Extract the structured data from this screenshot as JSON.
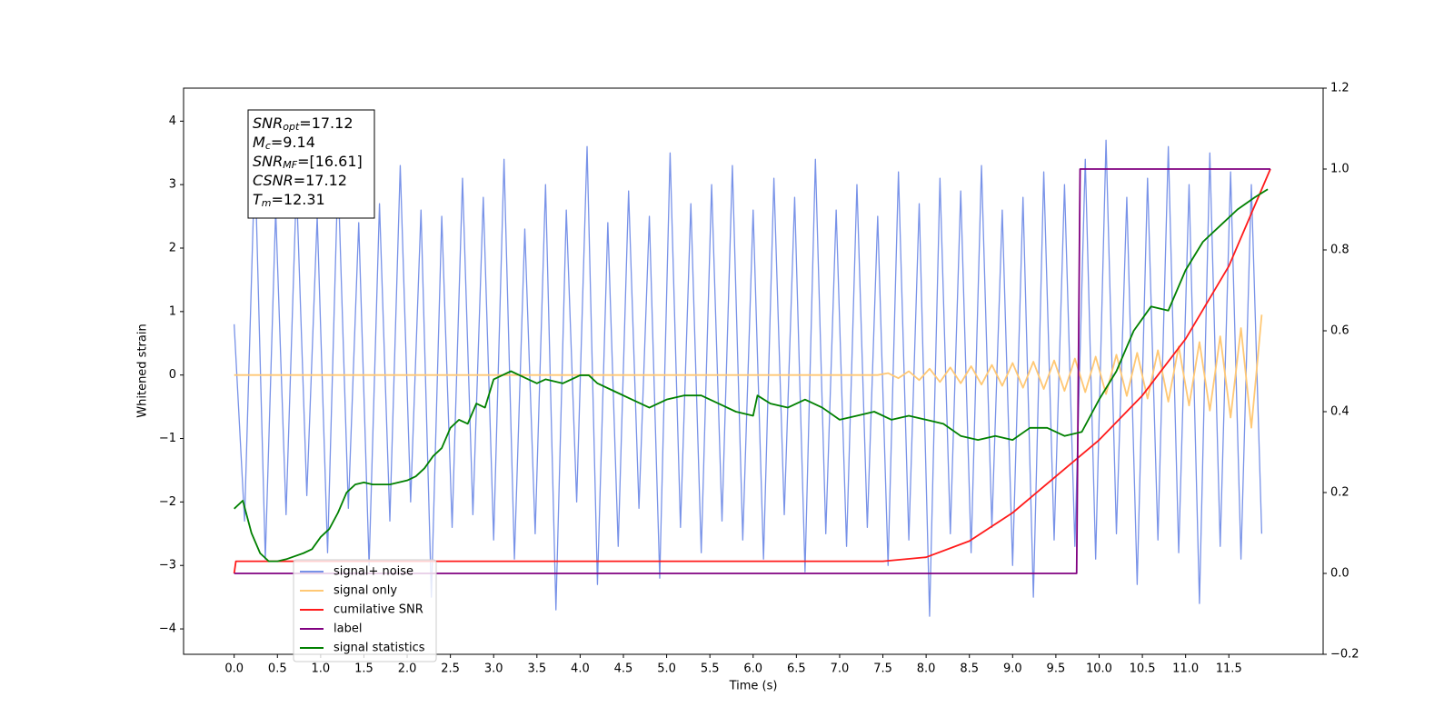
{
  "chart_data": {
    "type": "line",
    "xlabel": "Time (s)",
    "ylabel": "Whitened strain",
    "xlim": [
      -0.585,
      12.59
    ],
    "ylim": [
      -4.4,
      4.52
    ],
    "y2lim": [
      -0.2,
      1.2
    ],
    "xticks": [
      {
        "value": 0,
        "label": "0.0"
      },
      0.5,
      {
        "value": 1,
        "label": "1.0"
      },
      1.5,
      {
        "value": 2,
        "label": "2.0"
      },
      2.5,
      {
        "value": 3,
        "label": "3.0"
      },
      3.5,
      {
        "value": 4,
        "label": "4.0"
      },
      4.5,
      {
        "value": 5,
        "label": "5.0"
      },
      5.5,
      {
        "value": 6,
        "label": "6.0"
      },
      6.5,
      {
        "value": 7,
        "label": "7.0"
      },
      7.5,
      {
        "value": 8,
        "label": "8.0"
      },
      8.5,
      {
        "value": 9,
        "label": "9.0"
      },
      9.5,
      {
        "value": 10,
        "label": "10.0"
      },
      10.5,
      {
        "value": 11,
        "label": "11.0"
      },
      11.5
    ],
    "yticks": [
      {
        "value": -4,
        "label": "−4"
      },
      {
        "value": -3,
        "label": "−3"
      },
      {
        "value": -2,
        "label": "−2"
      },
      {
        "value": -1,
        "label": "−1"
      },
      0,
      1,
      2,
      3,
      4
    ],
    "y2ticks": [
      {
        "value": -0.2,
        "label": "−0.2"
      },
      {
        "value": 0,
        "label": "0.0"
      },
      0.2,
      0.4,
      0.6,
      0.8,
      {
        "value": 1,
        "label": "1.0"
      },
      1.2
    ],
    "annotation": [
      {
        "main": "SNR",
        "sub": "opt",
        "text": "=17.12"
      },
      {
        "main": "M",
        "sub": "c",
        "text": "=9.14"
      },
      {
        "main": "SNR",
        "sub": "MF",
        "text": "=[16.61]"
      },
      {
        "main": "CSNR",
        "sub": "",
        "text": "=17.12"
      },
      {
        "main": "T",
        "sub": "m",
        "text": "=12.31"
      }
    ],
    "x": [
      0,
      0.12,
      0.24,
      0.36,
      0.48,
      0.6,
      0.72,
      0.84,
      0.96,
      1.08,
      1.2,
      1.32,
      1.44,
      1.56,
      1.68,
      1.8,
      1.92,
      2.04,
      2.16,
      2.28,
      2.4,
      2.52,
      2.64,
      2.76,
      2.88,
      3,
      3.12,
      3.24,
      3.36,
      3.48,
      3.6,
      3.72,
      3.84,
      3.96,
      4.08,
      4.2,
      4.32,
      4.44,
      4.56,
      4.68,
      4.8,
      4.92,
      5.04,
      5.16,
      5.28,
      5.4,
      5.52,
      5.64,
      5.76,
      5.88,
      6,
      6.12,
      6.24,
      6.36,
      6.48,
      6.6,
      6.72,
      6.84,
      6.96,
      7.08,
      7.2,
      7.32,
      7.44,
      7.56,
      7.68,
      7.8,
      7.92,
      8.04,
      8.16,
      8.28,
      8.4,
      8.52,
      8.64,
      8.76,
      8.88,
      9,
      9.12,
      9.24,
      9.36,
      9.48,
      9.6,
      9.72,
      9.84,
      9.96,
      10.08,
      10.2,
      10.32,
      10.44,
      10.56,
      10.68,
      10.8,
      10.92,
      11.04,
      11.16,
      11.28,
      11.4,
      11.52,
      11.64,
      11.76,
      11.88
    ],
    "series": [
      {
        "name": "signal+ noise",
        "color": "#7892e8",
        "values": [
          0.8,
          -2.3,
          3.4,
          -2.9,
          2.6,
          -2.2,
          3.0,
          -1.9,
          2.5,
          -2.8,
          3.2,
          -2.1,
          2.4,
          -3.0,
          2.7,
          -2.3,
          3.3,
          -2.0,
          2.6,
          -3.5,
          2.5,
          -2.4,
          3.1,
          -2.2,
          2.8,
          -2.6,
          3.4,
          -2.9,
          2.3,
          -2.5,
          3.0,
          -3.7,
          2.6,
          -2.0,
          3.6,
          -3.3,
          2.4,
          -2.7,
          2.9,
          -2.1,
          2.5,
          -3.2,
          3.5,
          -2.4,
          2.7,
          -2.8,
          3.0,
          -2.3,
          3.3,
          -2.6,
          2.6,
          -2.9,
          3.1,
          -2.2,
          2.8,
          -3.1,
          3.4,
          -2.5,
          2.6,
          -2.7,
          3.0,
          -2.4,
          2.5,
          -3.0,
          3.2,
          -2.6,
          2.7,
          -3.8,
          3.1,
          -2.5,
          2.9,
          -2.8,
          3.3,
          -2.4,
          2.6,
          -3.0,
          2.8,
          -3.5,
          3.2,
          -2.6,
          3.0,
          -2.7,
          3.4,
          -2.9,
          3.7,
          -2.5,
          2.8,
          -3.3,
          3.1,
          -2.6,
          3.6,
          -2.8,
          3.0,
          -3.6,
          3.5,
          -2.7,
          3.2,
          -2.9,
          3.0,
          -2.5
        ]
      },
      {
        "name": "signal only",
        "color": "#ffc875",
        "values": [
          0,
          0,
          0,
          0,
          0,
          0,
          0,
          0,
          0,
          0,
          0,
          0,
          0,
          0,
          0,
          0,
          0,
          0,
          0,
          0,
          0,
          0,
          0,
          0,
          0,
          0,
          0,
          0,
          0,
          0,
          0,
          0,
          0,
          0,
          0,
          0,
          0,
          0,
          0,
          0,
          0,
          0,
          0,
          0,
          0,
          0,
          0,
          0,
          0,
          0,
          0,
          0,
          0,
          0,
          0,
          0,
          0,
          0,
          0,
          0,
          0,
          0,
          0,
          0.03,
          -0.05,
          0.06,
          -0.08,
          0.1,
          -0.11,
          0.12,
          -0.13,
          0.14,
          -0.15,
          0.16,
          -0.17,
          0.19,
          -0.2,
          0.21,
          -0.22,
          0.23,
          -0.25,
          0.26,
          -0.27,
          0.29,
          -0.3,
          0.32,
          -0.33,
          0.35,
          -0.37,
          0.39,
          -0.42,
          0.45,
          -0.48,
          0.52,
          -0.56,
          0.61,
          -0.67,
          0.74,
          -0.83,
          0.95
        ]
      },
      {
        "name": "cumilative SNR",
        "color": "#ff1a1a",
        "axis": "y2",
        "x": [
          0,
          0.02,
          2,
          4,
          6,
          7.5,
          8,
          8.5,
          9,
          9.5,
          10,
          10.5,
          11,
          11.5,
          11.98
        ],
        "values": [
          0,
          0.03,
          0.03,
          0.03,
          0.03,
          0.03,
          0.04,
          0.08,
          0.15,
          0.24,
          0.33,
          0.44,
          0.58,
          0.76,
          1.0
        ]
      },
      {
        "name": "label",
        "color": "#800080",
        "axis": "y2",
        "x": [
          0,
          9.74,
          9.78,
          11.98
        ],
        "values": [
          0,
          0,
          1,
          1
        ]
      },
      {
        "name": "signal statistics",
        "color": "#008000",
        "axis": "y2",
        "x": [
          0,
          0.1,
          0.2,
          0.3,
          0.4,
          0.5,
          0.6,
          0.8,
          0.9,
          1.0,
          1.1,
          1.2,
          1.3,
          1.4,
          1.5,
          1.6,
          1.7,
          1.8,
          1.9,
          2.0,
          2.1,
          2.2,
          2.3,
          2.4,
          2.5,
          2.6,
          2.7,
          2.8,
          2.9,
          3.0,
          3.1,
          3.2,
          3.3,
          3.4,
          3.5,
          3.6,
          3.8,
          4.0,
          4.1,
          4.2,
          4.4,
          4.6,
          4.8,
          5.0,
          5.2,
          5.4,
          5.6,
          5.8,
          6.0,
          6.05,
          6.2,
          6.4,
          6.6,
          6.8,
          7.0,
          7.2,
          7.4,
          7.6,
          7.8,
          8.0,
          8.2,
          8.4,
          8.6,
          8.8,
          9.0,
          9.2,
          9.4,
          9.6,
          9.8,
          10.0,
          10.2,
          10.4,
          10.6,
          10.8,
          11.0,
          11.2,
          11.4,
          11.6,
          11.8,
          11.95
        ],
        "values": [
          0.16,
          0.18,
          0.1,
          0.05,
          0.03,
          0.03,
          0.035,
          0.05,
          0.06,
          0.09,
          0.11,
          0.15,
          0.2,
          0.22,
          0.225,
          0.22,
          0.22,
          0.22,
          0.225,
          0.23,
          0.24,
          0.26,
          0.29,
          0.31,
          0.36,
          0.38,
          0.37,
          0.42,
          0.41,
          0.48,
          0.49,
          0.5,
          0.49,
          0.48,
          0.47,
          0.48,
          0.47,
          0.49,
          0.49,
          0.47,
          0.45,
          0.43,
          0.41,
          0.43,
          0.44,
          0.44,
          0.42,
          0.4,
          0.39,
          0.44,
          0.42,
          0.41,
          0.43,
          0.41,
          0.38,
          0.39,
          0.4,
          0.38,
          0.39,
          0.38,
          0.37,
          0.34,
          0.33,
          0.34,
          0.33,
          0.36,
          0.36,
          0.34,
          0.35,
          0.43,
          0.5,
          0.6,
          0.66,
          0.65,
          0.75,
          0.82,
          0.86,
          0.9,
          0.93,
          0.95
        ]
      }
    ]
  }
}
